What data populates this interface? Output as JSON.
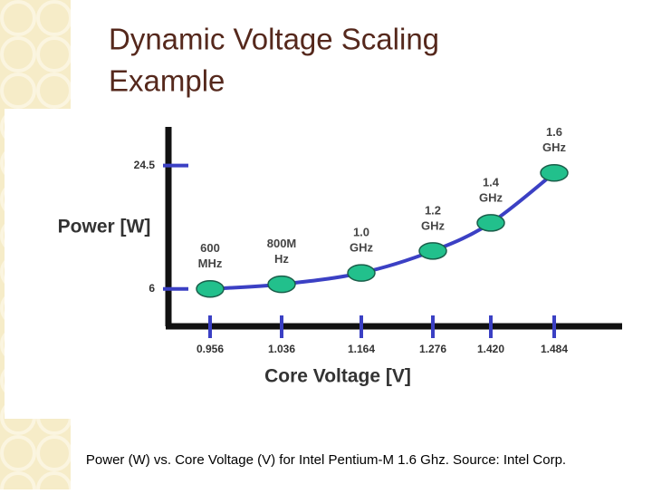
{
  "slide": {
    "title": [
      "Dynamic Voltage Scaling",
      "Example"
    ],
    "caption": "Power (W) vs. Core Voltage (V) for Intel Pentium-M 1.6 Ghz. Source: Intel Corp."
  },
  "chart_data": {
    "type": "line",
    "x_label": "Core Voltage [V]",
    "y_label": "Power [W]",
    "categories": [
      "0.956",
      "1.036",
      "1.164",
      "1.276",
      "1.420",
      "1.484"
    ],
    "values": [
      6,
      6.7,
      8.4,
      11.7,
      15.9,
      23.4
    ],
    "point_labels": [
      [
        "600",
        "MHz"
      ],
      [
        "800M",
        "Hz"
      ],
      [
        "1.0",
        "GHz"
      ],
      [
        "1.2",
        "GHz"
      ],
      [
        "1.4",
        "GHz"
      ],
      [
        "1.6",
        "GHz"
      ]
    ],
    "ylim": [
      0.8,
      30.3
    ],
    "yticks": [
      6,
      24.5
    ],
    "line_color": "#3b40c4",
    "marker_color": "#22c08c",
    "tick_color": "#3b40c4"
  }
}
